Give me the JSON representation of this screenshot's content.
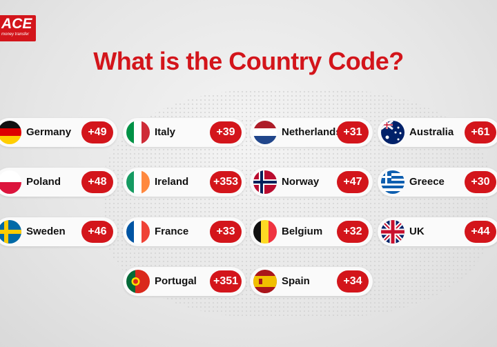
{
  "logo": {
    "brand": "ACE",
    "tagline": "money transfer"
  },
  "title": "What is the Country Code?",
  "accent_color": "#d3151b",
  "countries": [
    {
      "name": "Germany",
      "code": "+49",
      "flag": "germany-flag"
    },
    {
      "name": "Italy",
      "code": "+39",
      "flag": "italy-flag"
    },
    {
      "name": "Netherlands",
      "code": "+31",
      "flag": "netherlands-flag"
    },
    {
      "name": "Australia",
      "code": "+61",
      "flag": "australia-flag"
    },
    {
      "name": "Poland",
      "code": "+48",
      "flag": "poland-flag"
    },
    {
      "name": "Ireland",
      "code": "+353",
      "flag": "ireland-flag"
    },
    {
      "name": "Norway",
      "code": "+47",
      "flag": "norway-flag"
    },
    {
      "name": "Greece",
      "code": "+30",
      "flag": "greece-flag"
    },
    {
      "name": "Sweden",
      "code": "+46",
      "flag": "sweden-flag"
    },
    {
      "name": "France",
      "code": "+33",
      "flag": "france-flag"
    },
    {
      "name": "Belgium",
      "code": "+32",
      "flag": "belgium-flag"
    },
    {
      "name": "UK",
      "code": "+44",
      "flag": "uk-flag"
    },
    {
      "name": "Portugal",
      "code": "+351",
      "flag": "portugal-flag"
    },
    {
      "name": "Spain",
      "code": "+34",
      "flag": "spain-flag"
    }
  ]
}
